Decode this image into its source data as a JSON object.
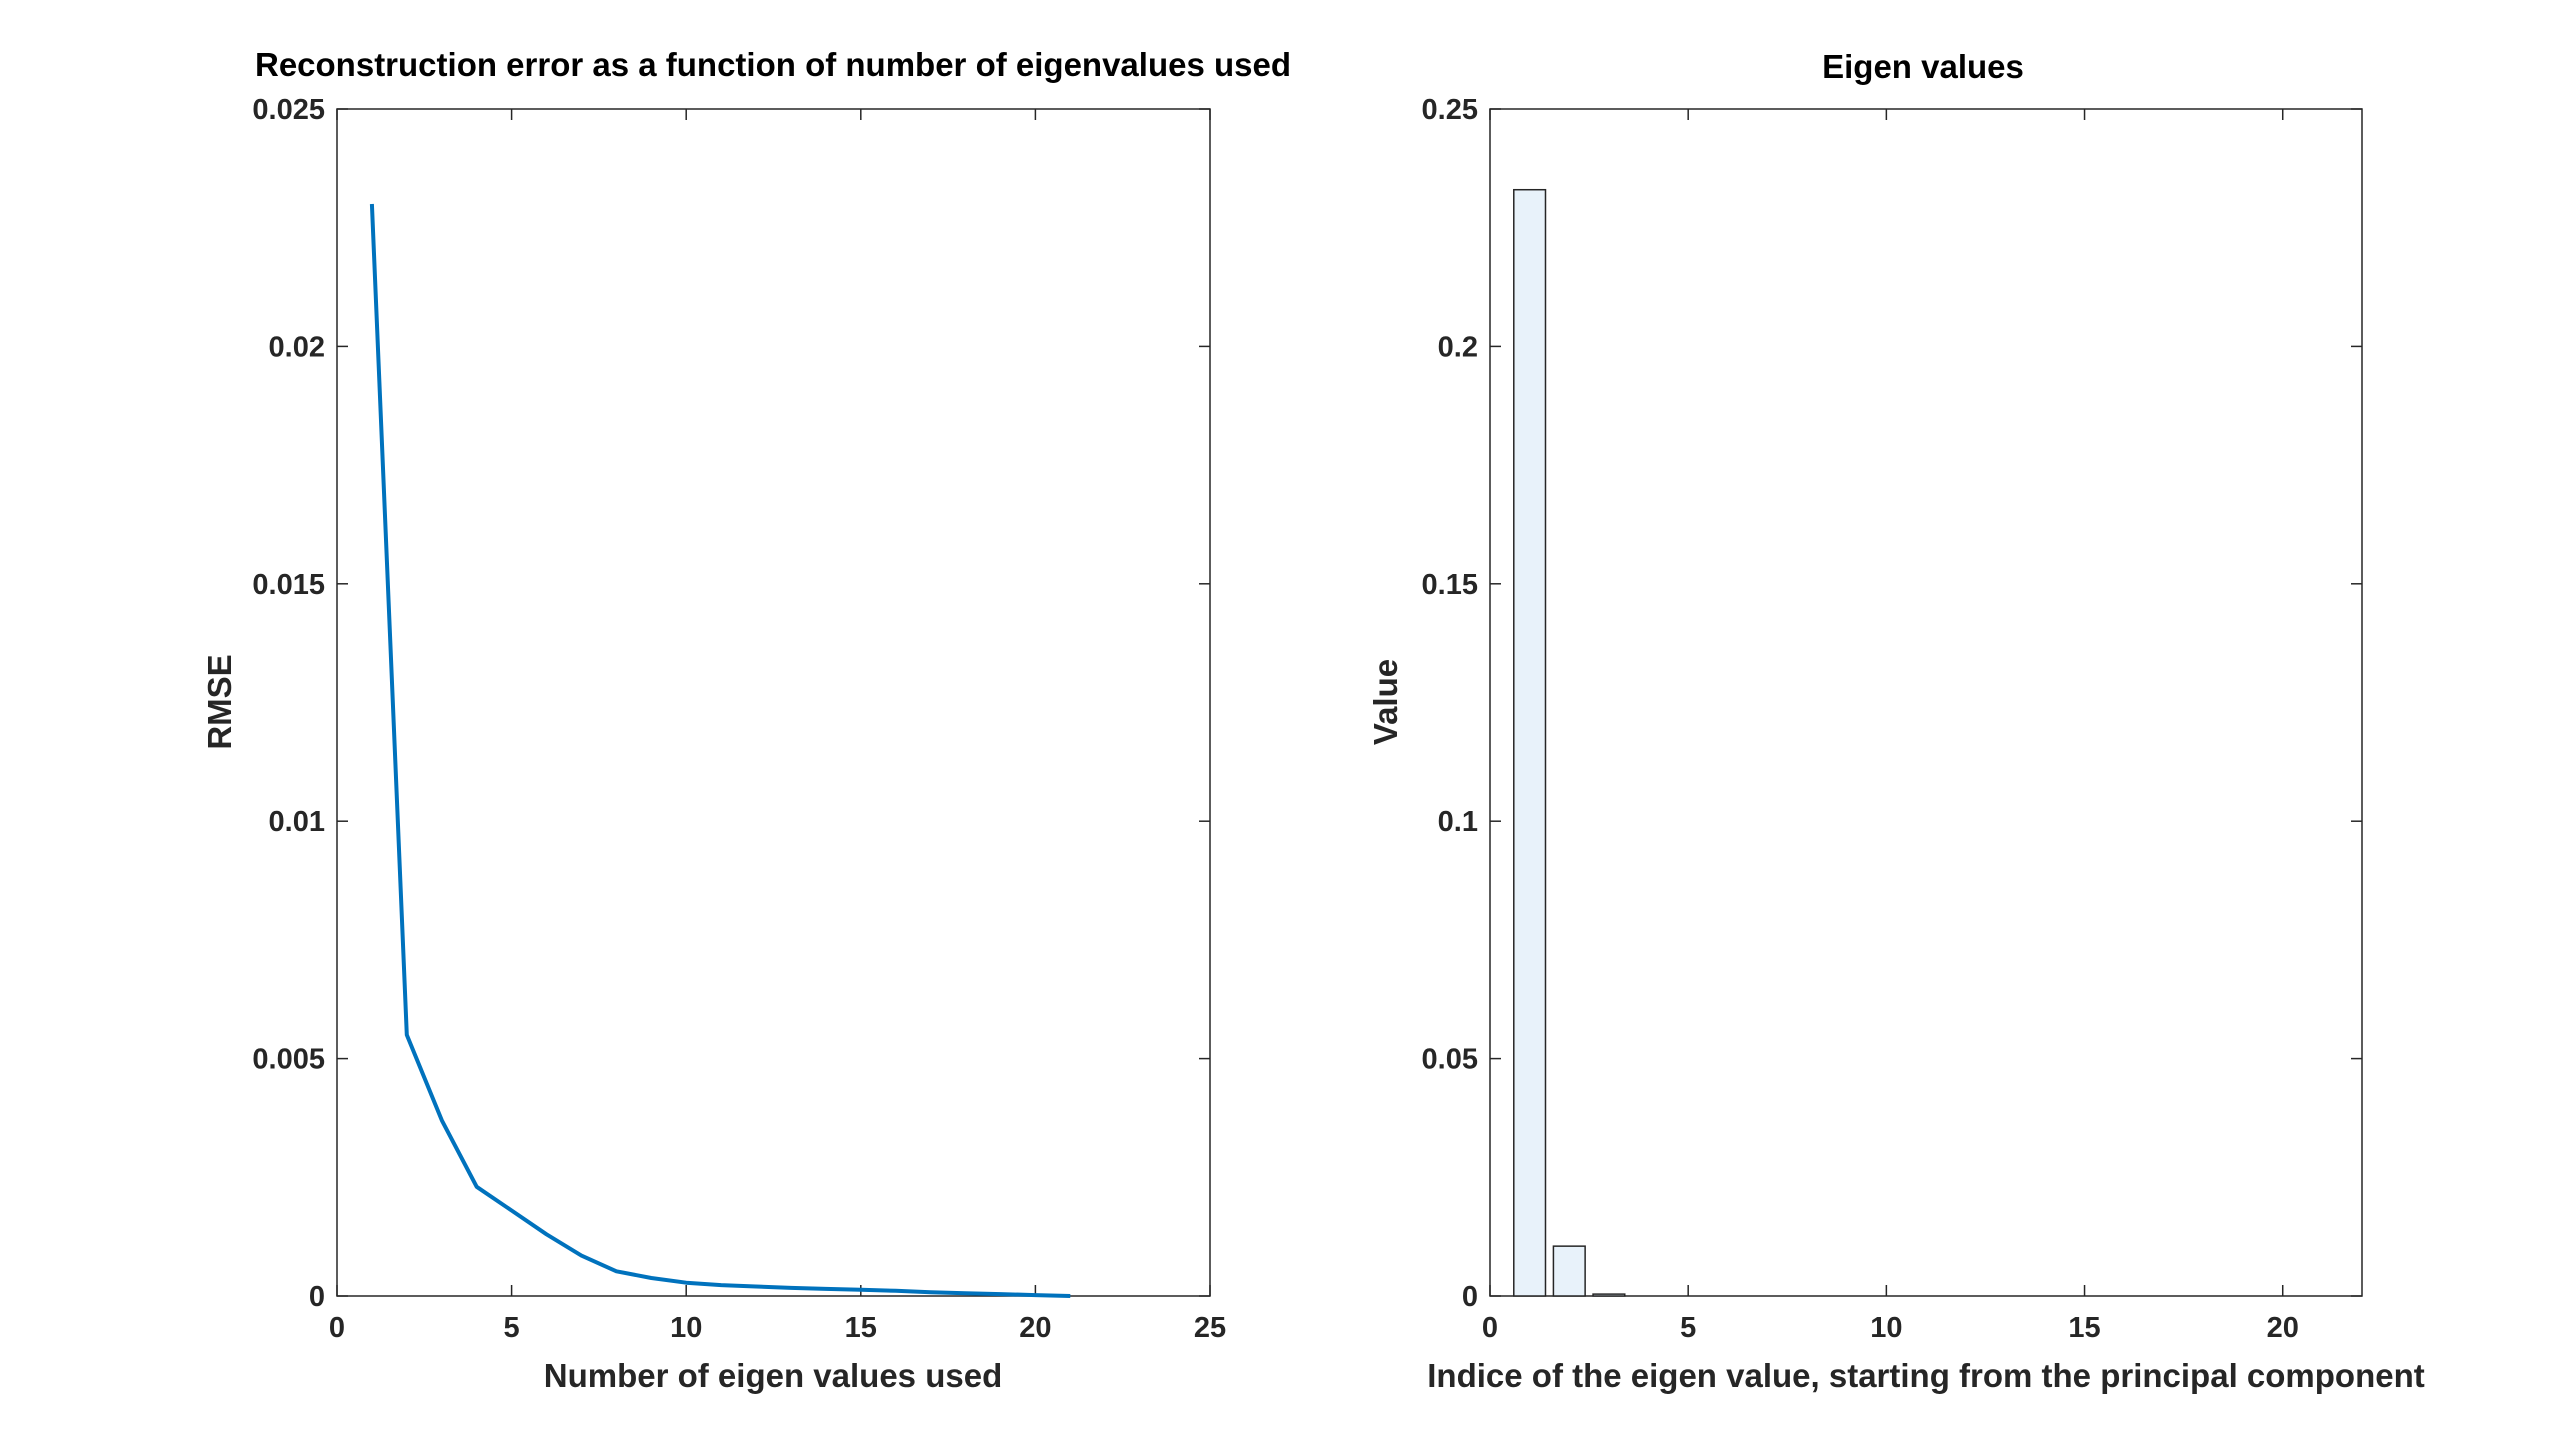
{
  "chart_data": [
    {
      "type": "line",
      "title": "Reconstruction error as a function of number of eigenvalues used",
      "xlabel": "Number of eigen values used",
      "ylabel": "RMSE",
      "xlim": [
        0,
        25
      ],
      "ylim": [
        0,
        0.025
      ],
      "xticks": [
        0,
        5,
        10,
        15,
        20,
        25
      ],
      "xtick_labels": [
        "0",
        "5",
        "10",
        "15",
        "20",
        "25"
      ],
      "yticks": [
        0,
        0.005,
        0.01,
        0.015,
        0.02,
        0.025
      ],
      "ytick_labels": [
        "0",
        "0.005",
        "0.01",
        "0.015",
        "0.02",
        "0.025"
      ],
      "grid": false,
      "series": [
        {
          "color": "#0072bd",
          "x": [
            1,
            2,
            3,
            4,
            5,
            6,
            7,
            8,
            9,
            10,
            11,
            12,
            13,
            14,
            15,
            16,
            17,
            18,
            19,
            20,
            21
          ],
          "values": [
            0.023,
            0.0055,
            0.0037,
            0.0023,
            0.0018,
            0.0013,
            0.00085,
            0.00052,
            0.00038,
            0.00028,
            0.00023,
            0.0002,
            0.00017,
            0.00015,
            0.00013,
            0.00011,
            8e-05,
            6e-05,
            4e-05,
            2e-05,
            0.0
          ]
        }
      ]
    },
    {
      "type": "bar",
      "title": "Eigen values",
      "xlabel": "Indice of the eigen value, starting from the principal component",
      "ylabel": "Value",
      "xlim": [
        0,
        22
      ],
      "ylim": [
        0,
        0.25
      ],
      "xticks": [
        0,
        5,
        10,
        15,
        20
      ],
      "xtick_labels": [
        "0",
        "5",
        "10",
        "15",
        "20"
      ],
      "yticks": [
        0,
        0.05,
        0.1,
        0.15,
        0.2,
        0.25
      ],
      "ytick_labels": [
        "0",
        "0.05",
        "0.1",
        "0.15",
        "0.2",
        "0.25"
      ],
      "grid": false,
      "bar_color": "#e8f2fa",
      "bar_edge_color": "#262626",
      "categories": [
        1,
        2,
        3,
        4,
        5,
        6,
        7,
        8,
        9,
        10,
        11,
        12,
        13,
        14,
        15,
        16,
        17,
        18,
        19,
        20,
        21
      ],
      "values": [
        0.233,
        0.0105,
        0.0004,
        0.0,
        0.0,
        0.0,
        0.0,
        0.0,
        0.0,
        0.0,
        0.0,
        0.0,
        0.0,
        0.0,
        0.0,
        0.0,
        0.0,
        0.0,
        0.0,
        0.0,
        0.0
      ]
    }
  ]
}
